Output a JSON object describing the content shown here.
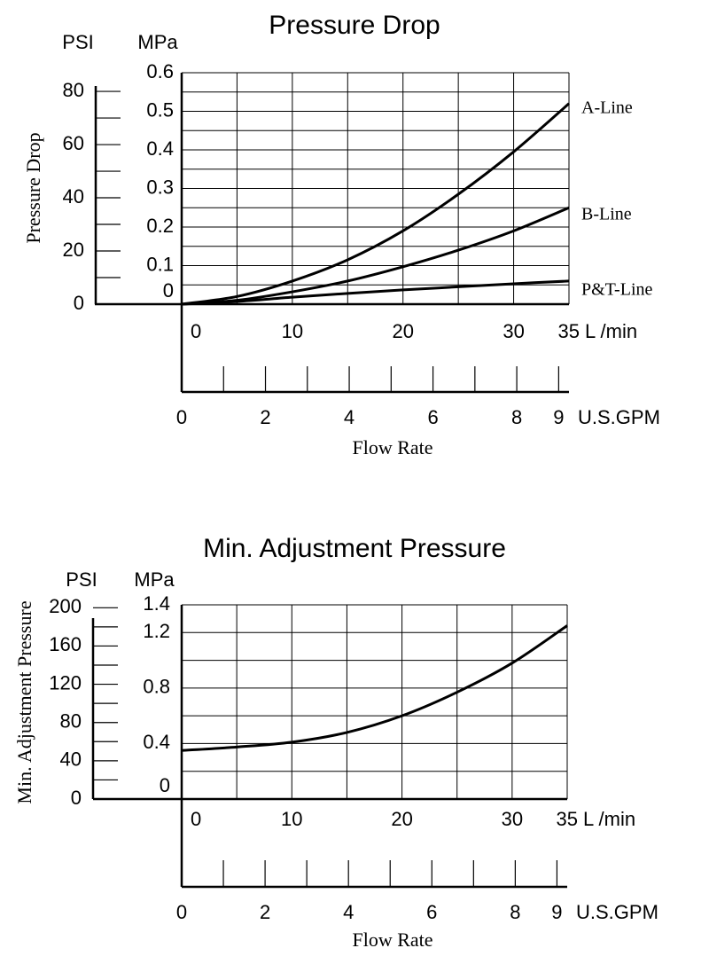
{
  "charts": [
    {
      "chart_data": {
        "type": "line",
        "title": "Pressure Drop",
        "ylabel": "Pressure Drop",
        "xlabel": "Flow Rate",
        "y_unit_left": "PSI",
        "y_unit_right": "MPa",
        "x_unit_top": "L /min",
        "x_unit_bottom": "U.S.GPM",
        "xlim": [
          0,
          35
        ],
        "ylim_mpa": [
          0,
          0.6
        ],
        "grid": true,
        "x_ticks": [
          "0",
          "10",
          "20",
          "30",
          "35"
        ],
        "mpa_ticks": [
          "0",
          "0.1",
          "0.2",
          "0.3",
          "0.4",
          "0.5",
          "0.6"
        ],
        "psi_ticks": [
          "0",
          "20",
          "40",
          "60",
          "80"
        ],
        "gpm_ticks": [
          "0",
          "2",
          "4",
          "6",
          "8",
          "9"
        ],
        "series": [
          {
            "name": "A-Line",
            "x": [
              0,
              5,
              10,
              15,
              20,
              25,
              30,
              35
            ],
            "y": [
              0,
              0.02,
              0.06,
              0.115,
              0.19,
              0.285,
              0.395,
              0.52
            ]
          },
          {
            "name": "B-Line",
            "x": [
              0,
              5,
              10,
              15,
              20,
              25,
              30,
              35
            ],
            "y": [
              0,
              0.01,
              0.032,
              0.06,
              0.097,
              0.14,
              0.19,
              0.25
            ]
          },
          {
            "name": "P&T-Line",
            "x": [
              0,
              5,
              10,
              15,
              20,
              25,
              30,
              35
            ],
            "y": [
              0,
              0.007,
              0.018,
              0.028,
              0.037,
              0.045,
              0.053,
              0.06
            ]
          }
        ]
      }
    },
    {
      "chart_data": {
        "type": "line",
        "title": "Min. Adjustment Pressure",
        "ylabel": "Min. Adjustment Pressure",
        "xlabel": "Flow Rate",
        "y_unit_left": "PSI",
        "y_unit_right": "MPa",
        "x_unit_top": "L /min",
        "x_unit_bottom": "U.S.GPM",
        "xlim": [
          0,
          35
        ],
        "ylim_mpa": [
          0,
          1.4
        ],
        "grid": true,
        "x_ticks": [
          "0",
          "10",
          "20",
          "30",
          "35"
        ],
        "mpa_ticks": [
          "0",
          "0.4",
          "0.8",
          "1.2",
          "1.4"
        ],
        "psi_ticks": [
          "0",
          "40",
          "80",
          "120",
          "160",
          "200"
        ],
        "gpm_ticks": [
          "0",
          "2",
          "4",
          "6",
          "8",
          "9"
        ],
        "series": [
          {
            "name": "Min. Adjustment Pressure",
            "x": [
              0,
              5,
              10,
              15,
              20,
              25,
              30,
              35
            ],
            "y": [
              0.35,
              0.375,
              0.41,
              0.48,
              0.6,
              0.77,
              0.98,
              1.25
            ]
          }
        ]
      }
    }
  ]
}
